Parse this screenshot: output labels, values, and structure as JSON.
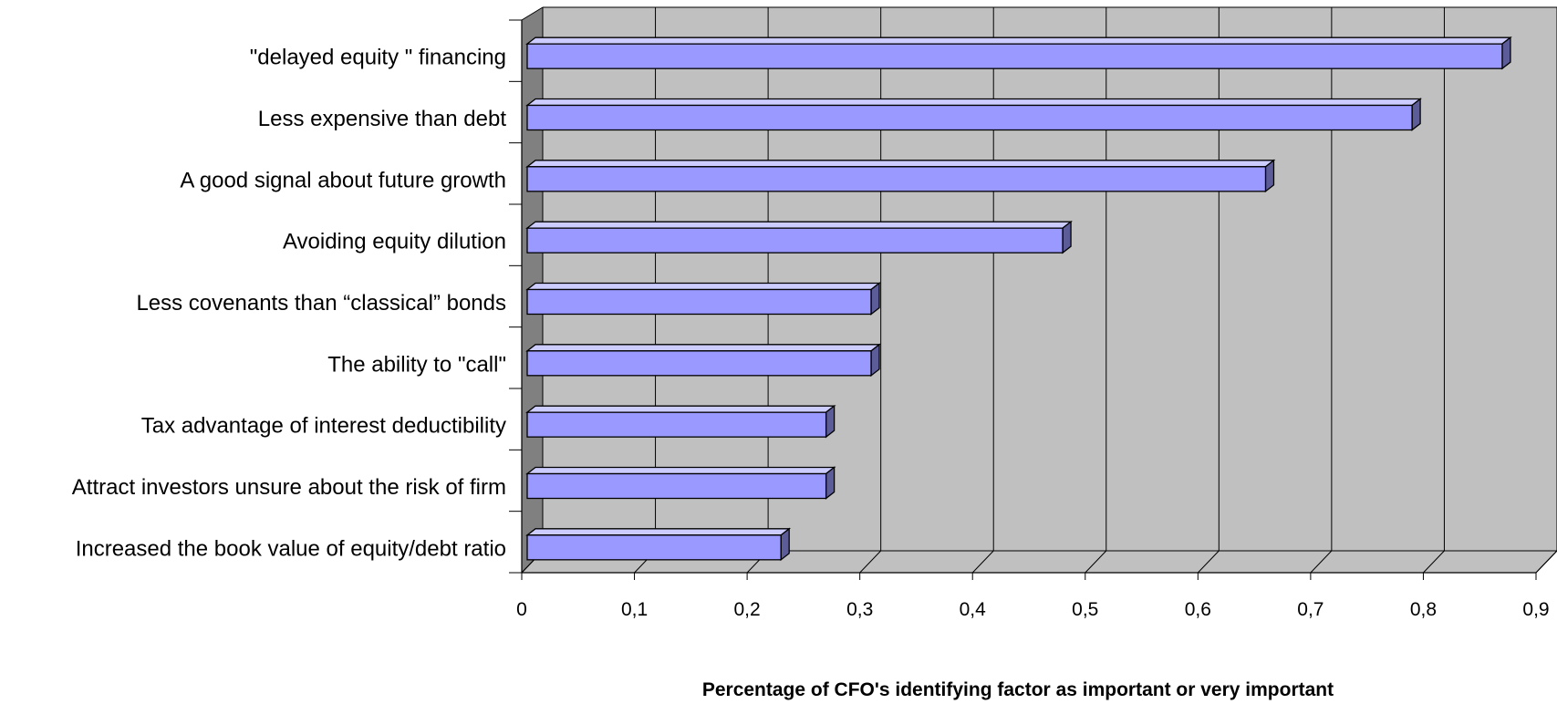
{
  "chart_data": {
    "type": "bar",
    "orientation": "horizontal",
    "style": "3d",
    "title": "",
    "xlabel": "Percentage of CFO's identifying factor as important or very important",
    "ylabel": "",
    "xlim": [
      0,
      0.9
    ],
    "xticks": [
      0,
      0.1,
      0.2,
      0.3,
      0.4,
      0.5,
      0.6,
      0.7,
      0.8,
      0.9
    ],
    "xtick_labels": [
      "0",
      "0,1",
      "0,2",
      "0,3",
      "0,4",
      "0,5",
      "0,6",
      "0,7",
      "0,8",
      "0,9"
    ],
    "grid": true,
    "legend": "none",
    "categories": [
      "\"delayed equity \" financing",
      "Less expensive than debt",
      "A good signal about future growth",
      "Avoiding equity dilution",
      "Less covenants than “classical” bonds",
      "The ability to \"call\"",
      "Tax advantage of interest deductibility",
      "Attract investors unsure about the risk of firm",
      "Increased the book value of equity/debt ratio"
    ],
    "values": [
      0.87,
      0.79,
      0.66,
      0.48,
      0.31,
      0.31,
      0.27,
      0.27,
      0.23
    ],
    "colors": {
      "bar_front": "#9999ff",
      "bar_top": "#ccccff",
      "bar_side": "#5c5c99",
      "plot_wall": "#c0c0c0",
      "side_wall": "#808080",
      "floor": "#c0c0c0",
      "gridline": "#000000"
    }
  }
}
